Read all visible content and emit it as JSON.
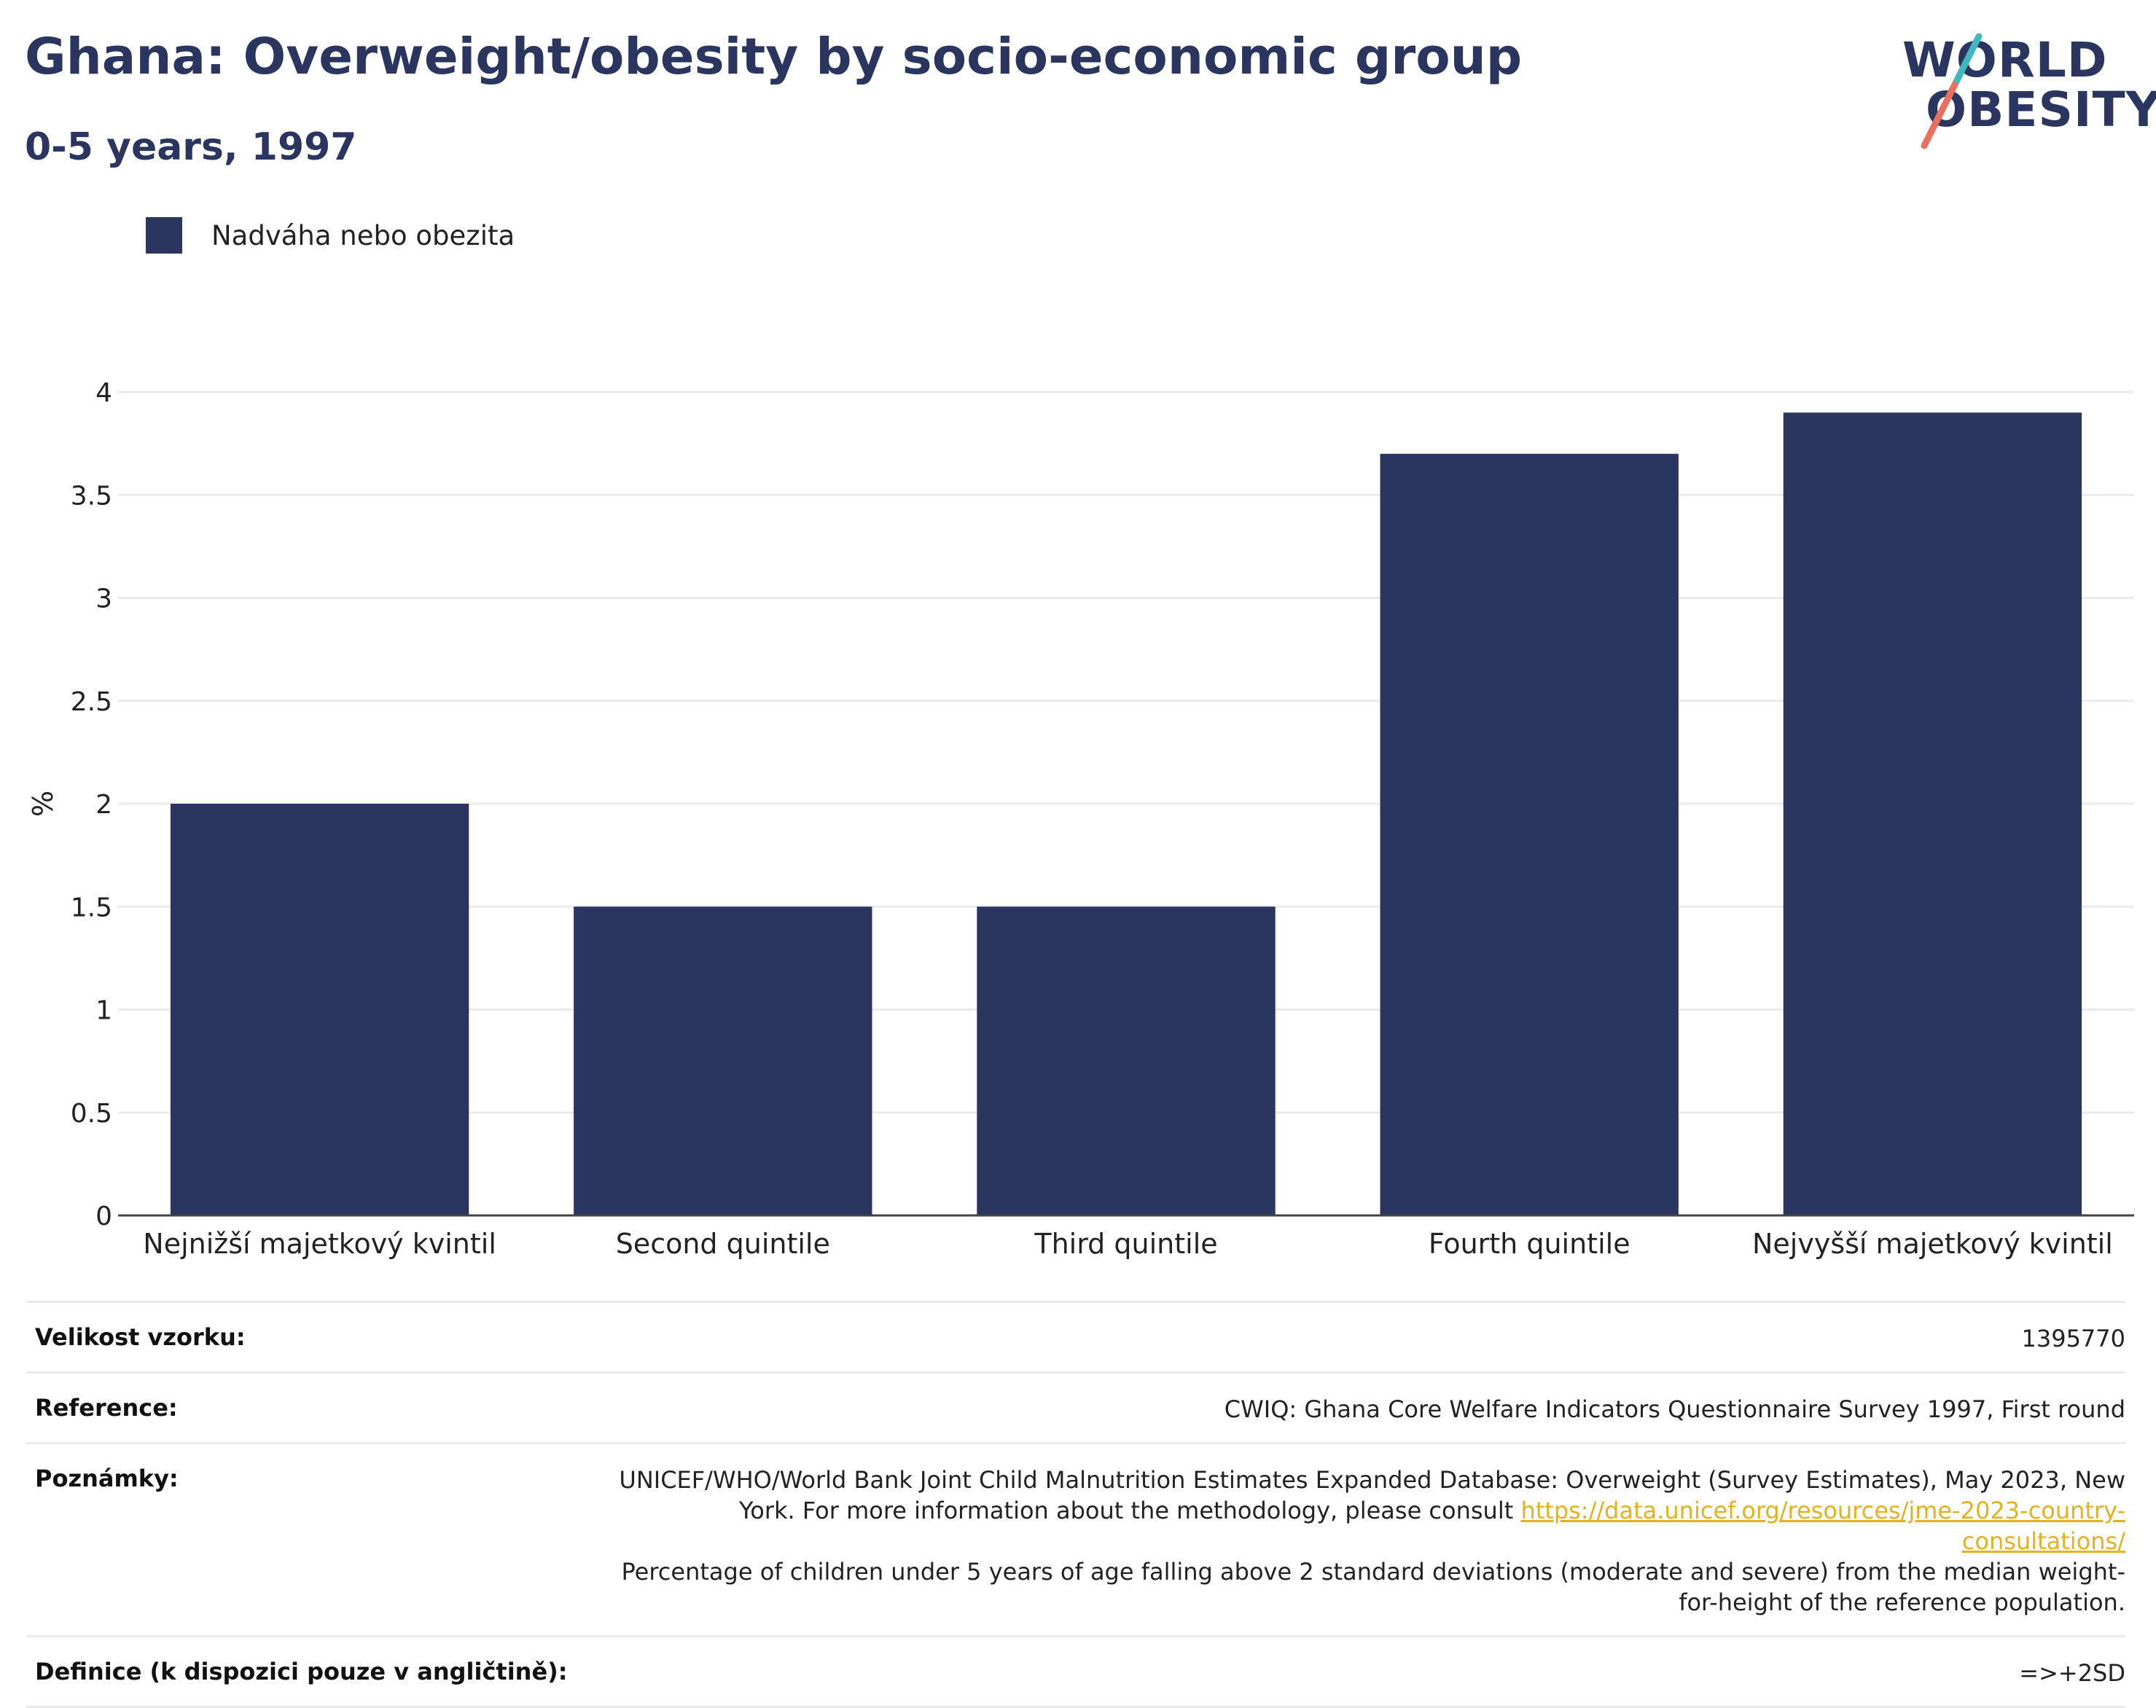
{
  "header": {
    "title": "Ghana: Overweight/obesity by socio-economic group",
    "subtitle": "0-5 years, 1997"
  },
  "logo": {
    "line1": "WORLD",
    "line2": "OBESITY"
  },
  "colors": {
    "bar": "#2a3560",
    "title": "#2a3560",
    "link": "#e3b21c",
    "grid": "#ebebeb"
  },
  "chart_data": {
    "type": "bar",
    "categories": [
      "Nejnižší majetkový kvintil",
      "Second quintile",
      "Third quintile",
      "Fourth quintile",
      "Nejvyšší majetkový kvintil"
    ],
    "series": [
      {
        "name": "Nadváha nebo obezita",
        "values": [
          2.0,
          1.5,
          1.5,
          3.7,
          3.9
        ]
      }
    ],
    "xlabel": "",
    "ylabel": "%",
    "ylim": [
      0,
      4
    ],
    "yticks": [
      "0",
      "0.5",
      "1",
      "1.5",
      "2",
      "2.5",
      "3",
      "3.5",
      "4"
    ],
    "grid": true,
    "legend": "top-left"
  },
  "info": {
    "sample_label": "Velikost vzorku:",
    "sample_value": "1395770",
    "reference_label": "Reference:",
    "reference_value": "CWIQ: Ghana Core Welfare Indicators Questionnaire Survey 1997, First round",
    "notes_label": "Poznámky:",
    "notes_text_1": "UNICEF/WHO/World Bank Joint Child Malnutrition Estimates Expanded Database: Overweight (Survey Estimates), May 2023, New York. For more information about the methodology, please consult ",
    "notes_link": "https://data.unicef.org/resources/jme-2023-country-consultations/",
    "notes_text_2": "Percentage of children under 5 years of age falling above 2 standard deviations (moderate and severe) from the median weight-for-height of the reference population.",
    "definition_label": "Definice (k dispozici pouze v angličtině):",
    "definition_value": "=>+2SD"
  }
}
